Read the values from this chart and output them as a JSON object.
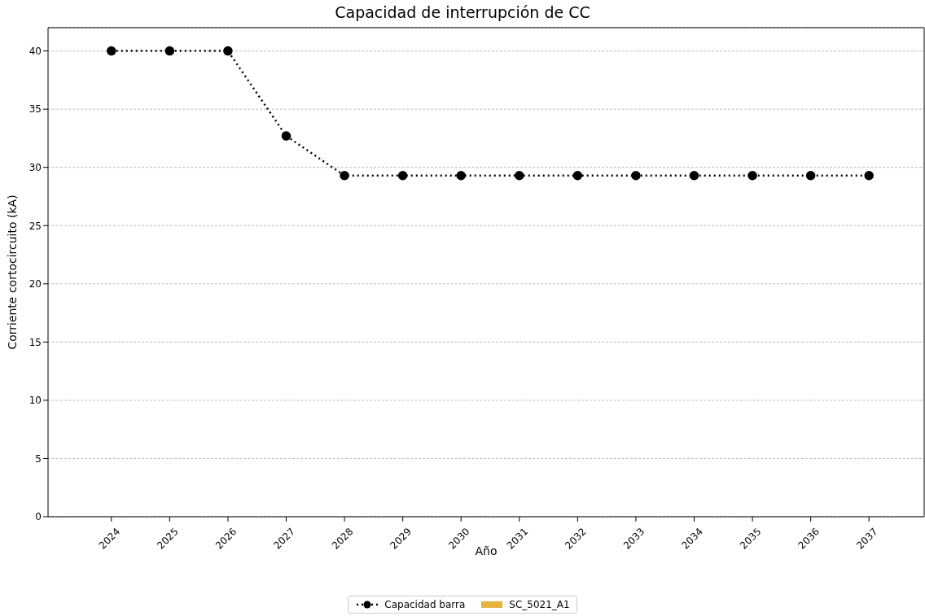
{
  "chart_data": {
    "type": "line",
    "title": "Capacidad de interrupción de CC",
    "xlabel": "Año",
    "ylabel": "Corriente cortocircuito (kA)",
    "categories": [
      "2024",
      "2025",
      "2026",
      "2027",
      "2028",
      "2029",
      "2030",
      "2031",
      "2032",
      "2033",
      "2034",
      "2035",
      "2036",
      "2037"
    ],
    "series": [
      {
        "name": "Capacidad barra",
        "color": "#000000",
        "marker": "circle",
        "line_style": "dotted",
        "values": [
          40,
          40,
          40,
          32.7,
          29.3,
          29.3,
          29.3,
          29.3,
          29.3,
          29.3,
          29.3,
          29.3,
          29.3,
          29.3
        ]
      },
      {
        "name": "SC_5021_A1",
        "type": "bar",
        "color": "#e6b43c",
        "values": [
          null,
          null,
          null,
          null,
          null,
          null,
          null,
          null,
          null,
          null,
          null,
          null,
          null,
          null
        ]
      }
    ],
    "ylim": [
      0,
      42
    ],
    "yticks": [
      0,
      5,
      10,
      15,
      20,
      25,
      30,
      35,
      40
    ],
    "grid": "y",
    "legend": "bottom"
  }
}
